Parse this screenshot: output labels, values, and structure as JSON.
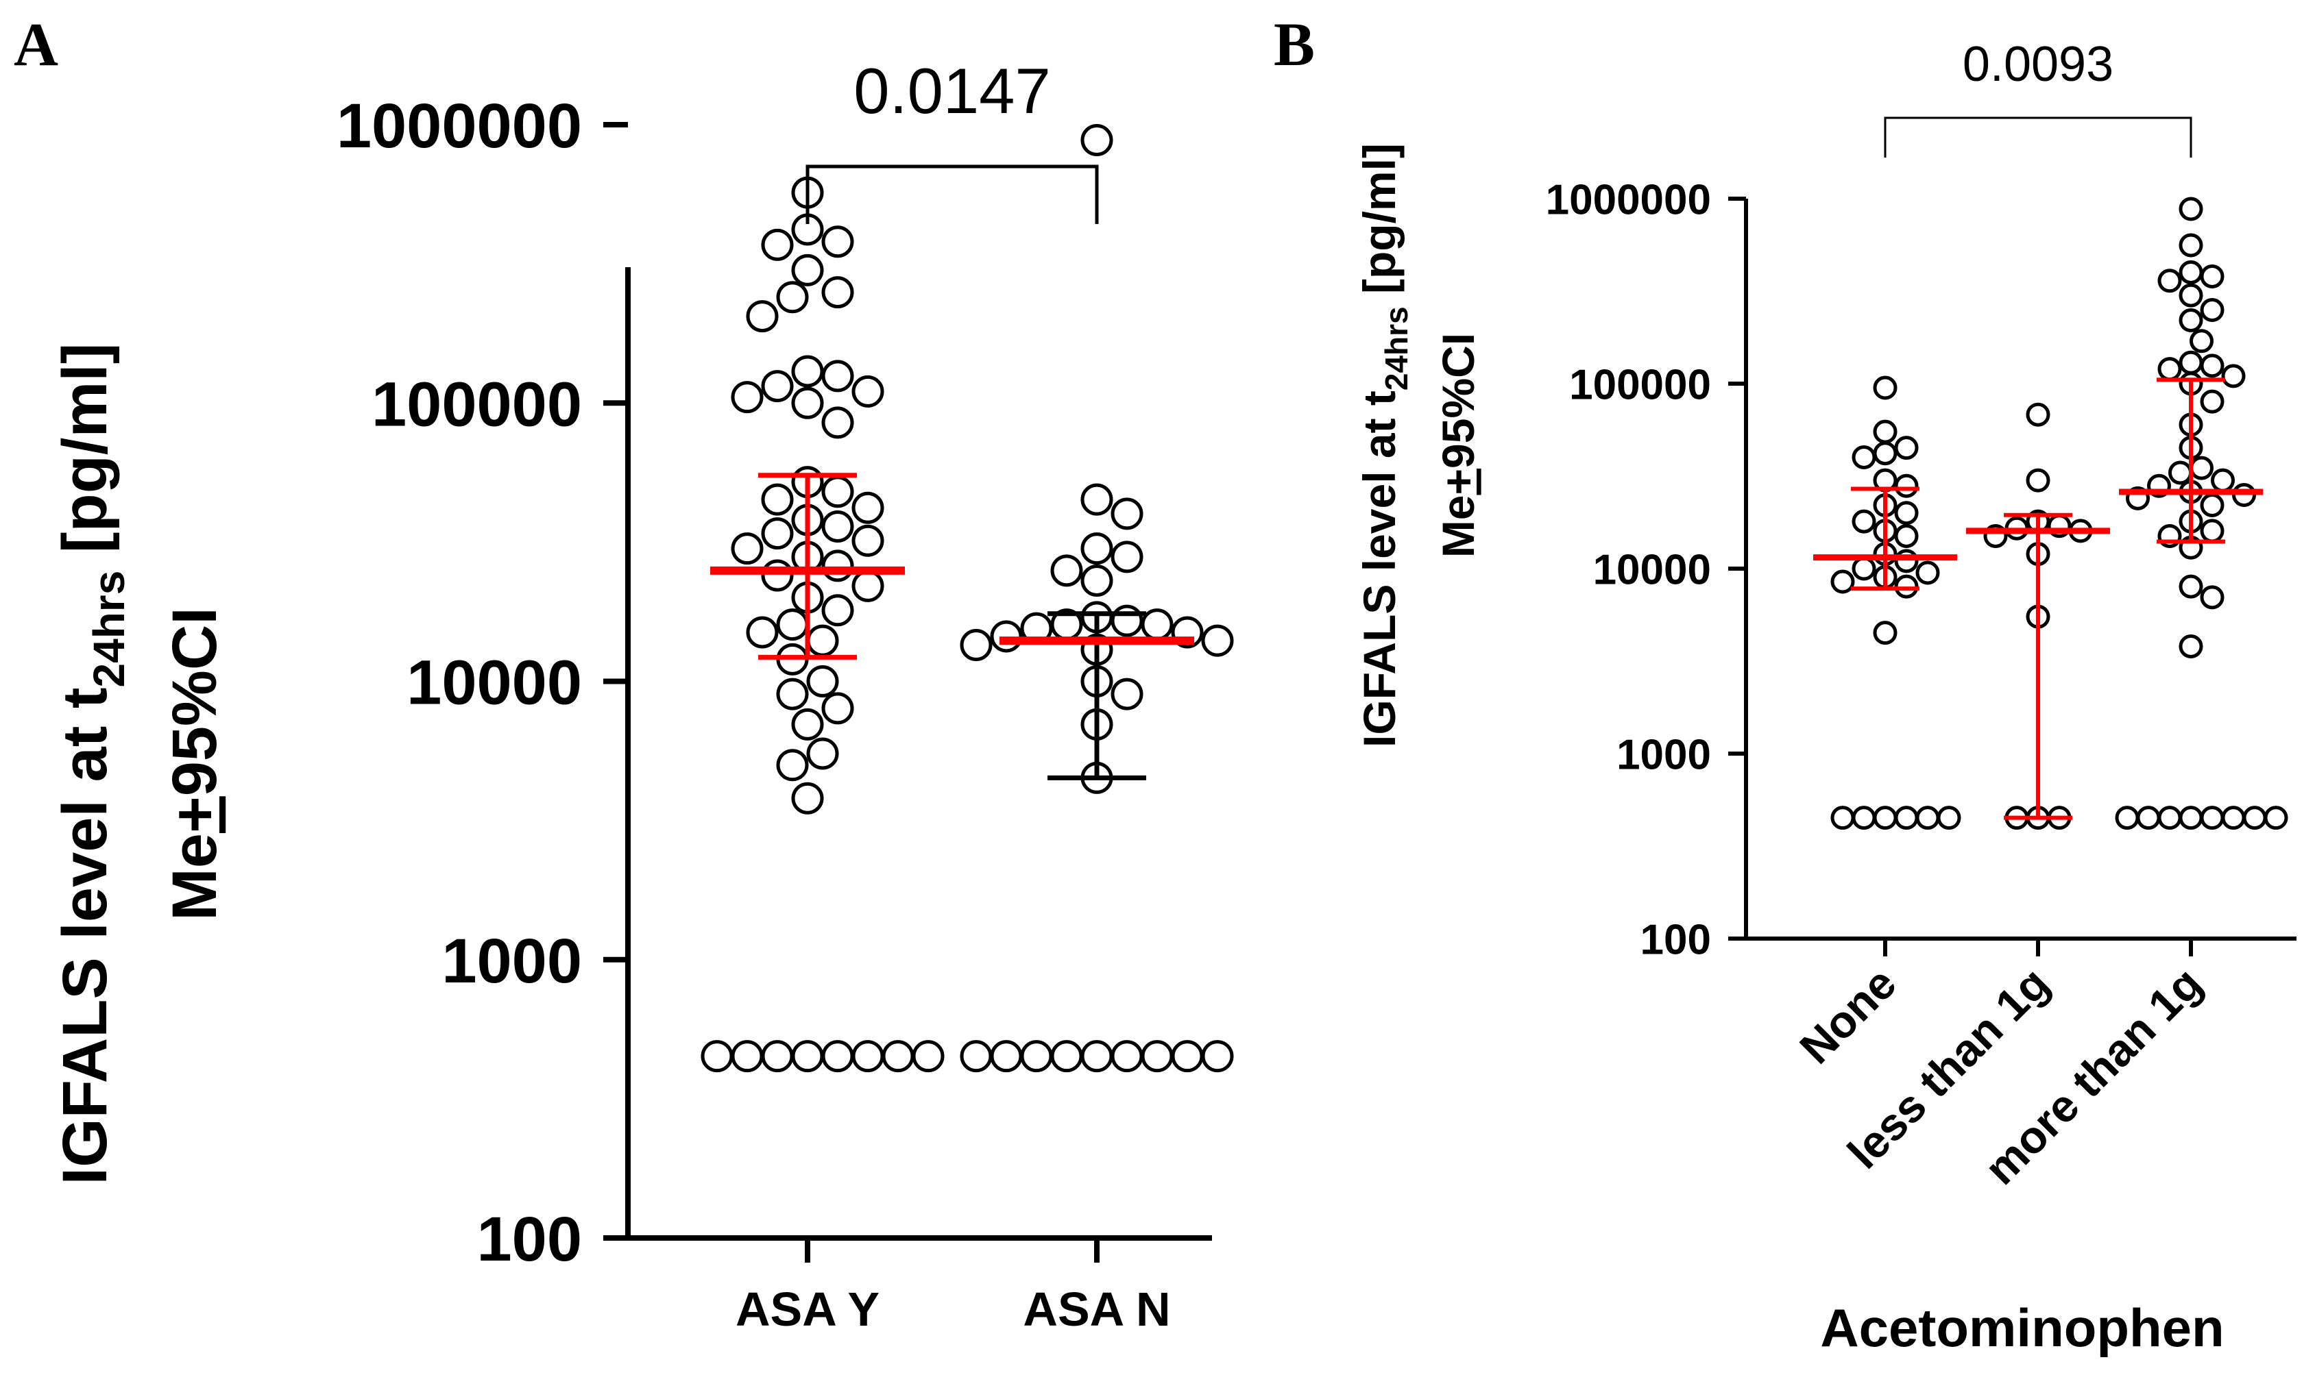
{
  "colors": {
    "axis": "#000000",
    "point_fill": "#ffffff",
    "point_stroke": "#000000",
    "median": "#ff0000"
  },
  "chart_data": [
    {
      "type": "scatter",
      "panel_label": "A",
      "title": "",
      "ylabel_lines": [
        "IGFALS level at t",
        "24hrs",
        " [pg/ml]",
        "Me",
        "+",
        "95%CI"
      ],
      "ylabel_line1": "IGFALS level at t",
      "ylabel_sub": "24hrs",
      "ylabel_unit": " [pg/ml]",
      "ylabel_line2_me": "Me",
      "ylabel_line2_pm": "+",
      "ylabel_line2_ci": "95%CI",
      "xlabel": "",
      "yscale": "log",
      "ylim": [
        100,
        1000000
      ],
      "ytick_labels": [
        "100",
        "1000",
        "10000",
        "100000",
        "1000000"
      ],
      "ytick_values": [
        100,
        1000,
        10000,
        100000,
        1000000
      ],
      "categories": [
        "ASA Y",
        "ASA N"
      ],
      "series": [
        {
          "name": "ASA Y",
          "median": 25000,
          "ci_low": 12200,
          "ci_high": 55000,
          "ci_color": "#ff0000",
          "values": [
            570000,
            420000,
            380000,
            370000,
            300000,
            250000,
            240000,
            205000,
            130000,
            125000,
            115000,
            110000,
            105000,
            100000,
            85000,
            52000,
            48000,
            45000,
            42000,
            38000,
            36000,
            34000,
            32000,
            30000,
            28000,
            26000,
            24000,
            22000,
            20000,
            18000,
            16000,
            15000,
            14000,
            12000,
            10000,
            9000,
            8000,
            7000,
            5500,
            5000,
            3800,
            450,
            450,
            450,
            450,
            450,
            450,
            450,
            450
          ]
        },
        {
          "name": "ASA N",
          "median": 14000,
          "ci_low": 4500,
          "ci_high": 17500,
          "ci_color": "#000000",
          "values": [
            880000,
            45000,
            40000,
            30000,
            28000,
            25000,
            23000,
            17000,
            16500,
            16000,
            16000,
            15500,
            15000,
            14500,
            14000,
            13500,
            13000,
            10000,
            9000,
            7000,
            4500,
            450,
            450,
            450,
            450,
            450,
            450,
            450,
            450,
            450
          ]
        }
      ],
      "comparisons": [
        {
          "groups": [
            "ASA Y",
            "ASA N"
          ],
          "p_value": "0.0147"
        }
      ]
    },
    {
      "type": "scatter",
      "panel_label": "B",
      "title": "",
      "ylabel_line1": "IGFALS level at t",
      "ylabel_sub": "24hrs",
      "ylabel_unit": " [pg/ml]",
      "ylabel_line2_me": "Me",
      "ylabel_line2_pm": "+",
      "ylabel_line2_ci": "95%CI",
      "xlabel": "Acetominophen",
      "yscale": "log",
      "ylim": [
        100,
        1000000
      ],
      "ytick_labels": [
        "100",
        "1000",
        "10000",
        "100000",
        "1000000"
      ],
      "ytick_values": [
        100,
        1000,
        10000,
        100000,
        1000000
      ],
      "categories": [
        "None",
        "less than 1g",
        "more than 1g"
      ],
      "series": [
        {
          "name": "None",
          "median": 11500,
          "ci_low": 7800,
          "ci_high": 27000,
          "ci_color": "#ff0000",
          "values": [
            95000,
            55000,
            45000,
            42000,
            40000,
            30000,
            28000,
            22000,
            20000,
            18000,
            16000,
            15000,
            12000,
            11000,
            10000,
            9500,
            9000,
            8500,
            8000,
            4500,
            450,
            450,
            450,
            450,
            450,
            450
          ]
        },
        {
          "name": "less than 1g",
          "median": 16000,
          "ci_low": 450,
          "ci_high": 19500,
          "ci_color": "#ff0000",
          "values": [
            68000,
            30000,
            18000,
            17000,
            16500,
            16000,
            15000,
            12000,
            5500,
            450,
            450,
            450
          ]
        },
        {
          "name": "more than 1g",
          "median": 26000,
          "ci_low": 14000,
          "ci_high": 105000,
          "ci_color": "#ff0000",
          "values": [
            880000,
            560000,
            400000,
            380000,
            360000,
            300000,
            250000,
            220000,
            170000,
            130000,
            125000,
            120000,
            110000,
            100000,
            80000,
            60000,
            45000,
            35000,
            33000,
            30000,
            28000,
            26000,
            25000,
            24000,
            22000,
            18000,
            16000,
            15000,
            13000,
            8000,
            7000,
            3800,
            450,
            450,
            450,
            450,
            450,
            450,
            450,
            450
          ]
        }
      ],
      "comparisons": [
        {
          "groups": [
            "None",
            "more than 1g"
          ],
          "p_value": "0.0093"
        }
      ]
    }
  ]
}
